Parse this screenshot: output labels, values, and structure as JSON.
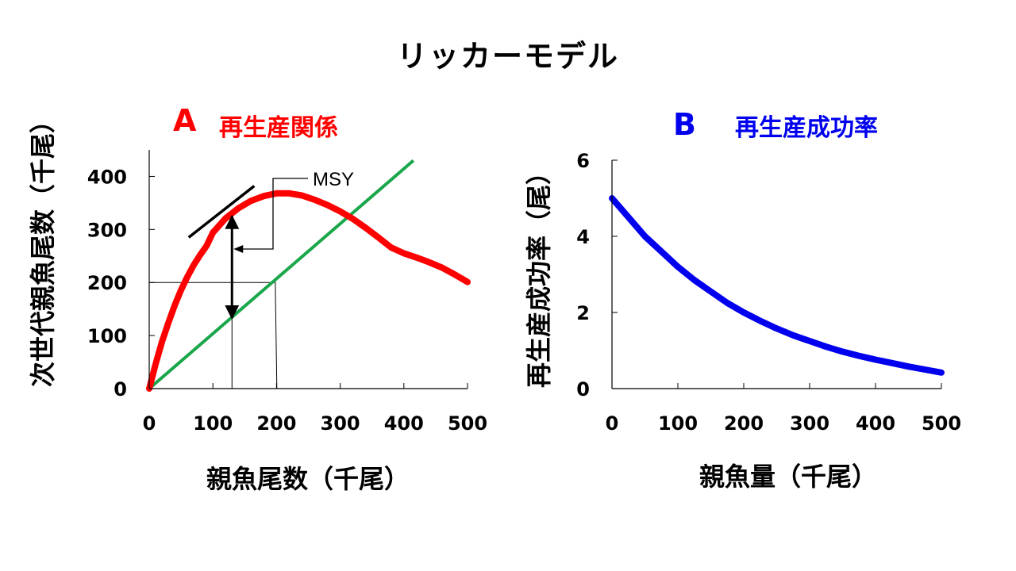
{
  "title": "リッカーモデル",
  "colors": {
    "recruitment": "#ff0000",
    "replacement": "#1aa64a",
    "success": "#0000ee",
    "axis": "#000000"
  },
  "chart_data": [
    {
      "type": "line",
      "panel_label": "A",
      "title": "再生産関係",
      "xlabel": "親魚尾数（千尾）",
      "ylabel": "次世代親魚尾数（千尾）",
      "xlim": [
        0,
        500
      ],
      "ylim": [
        0,
        450
      ],
      "xticks": [
        0,
        100,
        200,
        300,
        400,
        500
      ],
      "yticks": [
        0,
        100,
        200,
        300,
        400
      ],
      "series": [
        {
          "values": [
            [
              0,
              0
            ],
            [
              10,
              46
            ],
            [
              20,
              88
            ],
            [
              30,
              124
            ],
            [
              40,
              157
            ],
            [
              50,
              186
            ],
            [
              60,
              211
            ],
            [
              70,
              233
            ],
            [
              80,
              252
            ],
            [
              90,
              269
            ],
            [
              100,
              294
            ],
            [
              120,
              321
            ],
            [
              140,
              340
            ],
            [
              160,
              354
            ],
            [
              180,
              363
            ],
            [
              200,
              368
            ],
            [
              220,
              368
            ],
            [
              240,
              364
            ],
            [
              260,
              356
            ],
            [
              280,
              346
            ],
            [
              300,
              334
            ],
            [
              320,
              320
            ],
            [
              340,
              303
            ],
            [
              360,
              285
            ],
            [
              380,
              266
            ],
            [
              400,
              255
            ],
            [
              420,
              247
            ],
            [
              440,
              238
            ],
            [
              460,
              228
            ],
            [
              480,
              215
            ],
            [
              500,
              201
            ]
          ]
        },
        {
          "values": [
            [
              0,
              0
            ],
            [
              415,
              430
            ]
          ]
        }
      ],
      "annotations": {
        "msy_label": "MSY",
        "msy_x": 130,
        "msy_recruit": 328,
        "msy_replace": 130,
        "ref_y": 200,
        "ref_x": 198,
        "tangent": [
          [
            62,
            285
          ],
          [
            165,
            382
          ]
        ]
      }
    },
    {
      "type": "line",
      "panel_label": "B",
      "title": "再生産成功率",
      "xlabel": "親魚量（千尾）",
      "ylabel": "再生産成功率（尾）",
      "xlim": [
        0,
        500
      ],
      "ylim": [
        0,
        6
      ],
      "xticks": [
        0,
        100,
        200,
        300,
        400,
        500
      ],
      "yticks": [
        0,
        2,
        4,
        6
      ],
      "series": [
        {
          "values": [
            [
              0,
              5.0
            ],
            [
              25,
              4.5
            ],
            [
              50,
              4.0
            ],
            [
              75,
              3.6
            ],
            [
              100,
              3.2
            ],
            [
              125,
              2.85
            ],
            [
              150,
              2.55
            ],
            [
              175,
              2.25
            ],
            [
              200,
              2.0
            ],
            [
              225,
              1.78
            ],
            [
              250,
              1.58
            ],
            [
              275,
              1.4
            ],
            [
              300,
              1.25
            ],
            [
              325,
              1.1
            ],
            [
              350,
              0.97
            ],
            [
              375,
              0.86
            ],
            [
              400,
              0.76
            ],
            [
              425,
              0.67
            ],
            [
              450,
              0.58
            ],
            [
              475,
              0.5
            ],
            [
              500,
              0.42
            ]
          ]
        }
      ]
    }
  ]
}
